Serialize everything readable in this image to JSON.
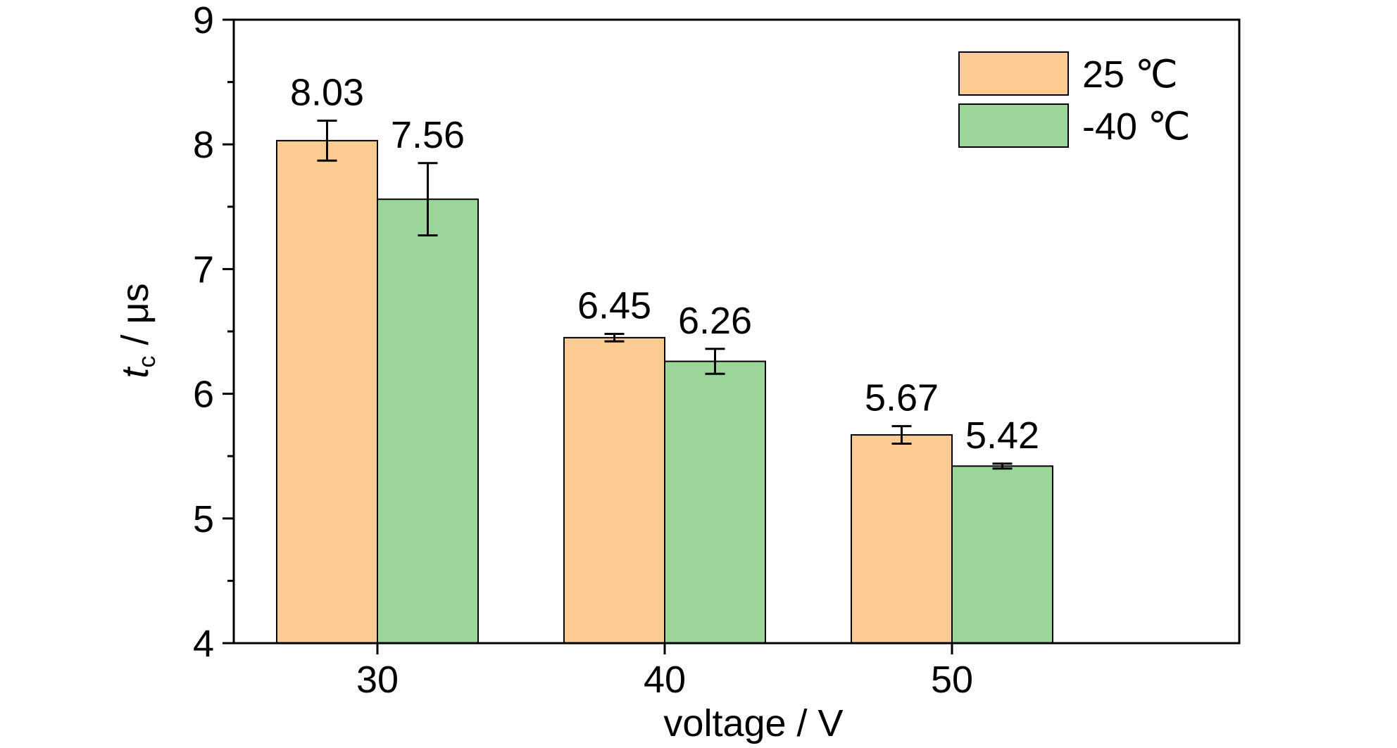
{
  "chart_data": {
    "type": "bar",
    "categories": [
      "30",
      "40",
      "50"
    ],
    "series": [
      {
        "name": "25 ℃",
        "color": "#FBCB92",
        "values": [
          8.03,
          6.45,
          5.67
        ],
        "errors": [
          0.16,
          0.03,
          0.07
        ]
      },
      {
        "name": "-40 ℃",
        "color": "#9BD59A",
        "values": [
          7.56,
          6.26,
          5.42
        ],
        "errors": [
          0.29,
          0.1,
          0.02
        ]
      }
    ],
    "value_labels": [
      [
        "8.03",
        "6.45",
        "5.67"
      ],
      [
        "7.56",
        "6.26",
        "5.42"
      ]
    ],
    "xlabel": "voltage / V",
    "ylabel_main": "t",
    "ylabel_sub": "c",
    "ylabel_unit": " / μs",
    "ylim": [
      4,
      9
    ],
    "yticks": [
      4,
      5,
      6,
      7,
      8,
      9
    ],
    "legend_position": "top-right",
    "grid": false
  }
}
